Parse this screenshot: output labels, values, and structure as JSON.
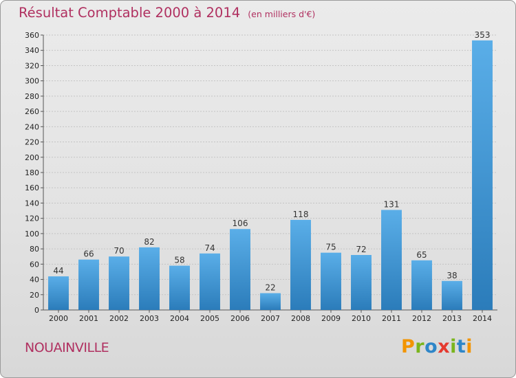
{
  "title": "Résultat Comptable 2000 à 2014",
  "subtitle": "(en milliers d'€)",
  "commune": "NOUAINVILLE",
  "logo": {
    "letters": [
      "P",
      "r",
      "o",
      "x",
      "i",
      "t",
      "i"
    ],
    "colors": [
      "#f29400",
      "#7ab51d",
      "#2e86c8",
      "#e53a2f",
      "#7ab51d",
      "#2e86c8",
      "#f29400"
    ]
  },
  "colors": {
    "accent": "#b03060",
    "bar_light": "#5aaee8",
    "bar_dark": "#2b7cba",
    "grid": "#c4c4c4"
  },
  "chart_data": {
    "type": "bar",
    "title": "Résultat Comptable 2000 à 2014",
    "subtitle": "(en milliers d'€)",
    "categories": [
      "2000",
      "2001",
      "2002",
      "2003",
      "2004",
      "2005",
      "2006",
      "2007",
      "2008",
      "2009",
      "2010",
      "2011",
      "2012",
      "2013",
      "2014"
    ],
    "values": [
      44,
      66,
      70,
      82,
      58,
      74,
      106,
      22,
      118,
      75,
      72,
      131,
      65,
      38,
      353
    ],
    "ylim": [
      0,
      360
    ],
    "yticks": [
      0,
      20,
      40,
      60,
      80,
      100,
      120,
      140,
      160,
      180,
      200,
      220,
      240,
      260,
      280,
      300,
      320,
      340,
      360
    ],
    "xlabel": "",
    "ylabel": "",
    "grid": true
  }
}
